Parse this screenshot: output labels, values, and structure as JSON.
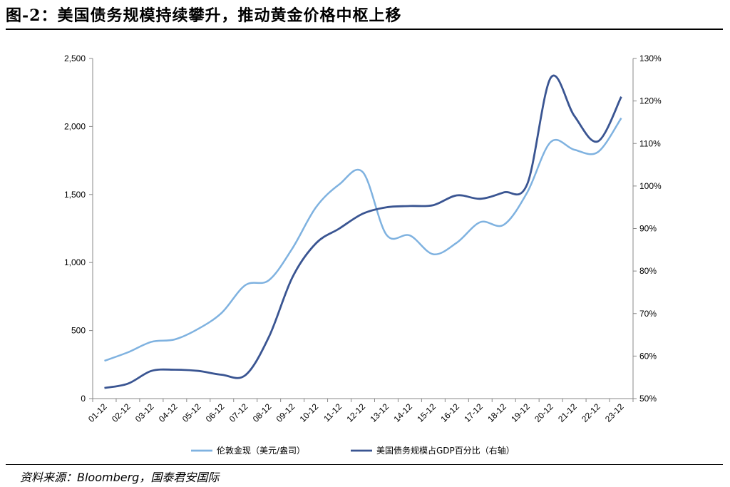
{
  "figure": {
    "title": "图-2：美国债务规模持续攀升，推动黄金价格中枢上移",
    "source": "资料来源：Bloomberg，国泰君安国际"
  },
  "chart_data": {
    "type": "line",
    "categories": [
      "01-12",
      "02-12",
      "03-12",
      "04-12",
      "05-12",
      "06-12",
      "07-12",
      "08-12",
      "09-12",
      "10-12",
      "11-12",
      "12-12",
      "13-12",
      "14-12",
      "15-12",
      "16-12",
      "17-12",
      "18-12",
      "19-12",
      "20-12",
      "21-12",
      "22-12",
      "23-12"
    ],
    "left_axis": {
      "ylim": [
        0,
        2500
      ],
      "ticks": [
        "0",
        "500",
        "1,000",
        "1,500",
        "2,000",
        "2,500"
      ],
      "tick_values": [
        0,
        500,
        1000,
        1500,
        2000,
        2500
      ]
    },
    "right_axis": {
      "ylim": [
        50,
        130
      ],
      "ticks": [
        "50%",
        "60%",
        "70%",
        "80%",
        "90%",
        "100%",
        "110%",
        "120%",
        "130%"
      ],
      "tick_values": [
        50,
        60,
        70,
        80,
        90,
        100,
        110,
        120,
        130
      ]
    },
    "series": [
      {
        "name": "伦敦金现（美元/盎司）",
        "axis": "left",
        "color": "#7fb2e0",
        "values": [
          278,
          340,
          417,
          435,
          513,
          632,
          834,
          870,
          1104,
          1405,
          1575,
          1664,
          1205,
          1199,
          1061,
          1146,
          1297,
          1278,
          1517,
          1887,
          1829,
          1812,
          2062
        ]
      },
      {
        "name": "美国债务规模占GDP百分比（右轴）",
        "axis": "right",
        "color": "#3a5592",
        "values": [
          52.5,
          53.5,
          56.5,
          56.8,
          56.5,
          55.6,
          55.5,
          64.5,
          78.5,
          86.5,
          90.0,
          93.5,
          95.0,
          95.3,
          95.5,
          97.8,
          97.0,
          98.5,
          100.5,
          125.5,
          116.5,
          110.5,
          121.0
        ]
      }
    ]
  }
}
